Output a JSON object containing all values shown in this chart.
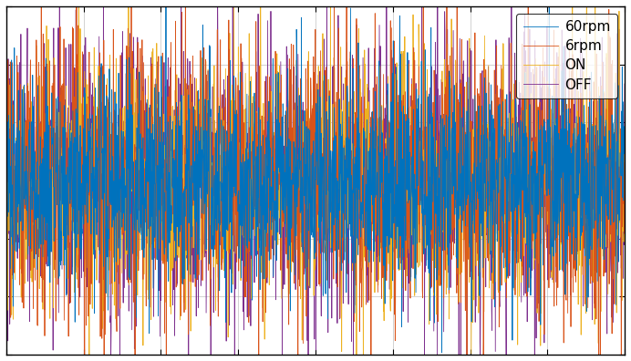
{
  "colors": {
    "60rpm": "#0072bd",
    "6rpm": "#d95319",
    "ON": "#edb120",
    "OFF": "#7e2f8e"
  },
  "legend_labels": [
    "60rpm",
    "6rpm",
    "ON",
    "OFF"
  ],
  "ylim": [
    -1.5,
    1.5
  ],
  "xlim": [
    0,
    1
  ],
  "n_points": 2000,
  "background_color": "#ffffff",
  "fig_bg": "#ffffff",
  "axes_bg": "#ffffff",
  "grid_color": "#b0b0b0",
  "spine_color": "#000000",
  "legend_fontsize": 11,
  "linewidth": 0.6
}
